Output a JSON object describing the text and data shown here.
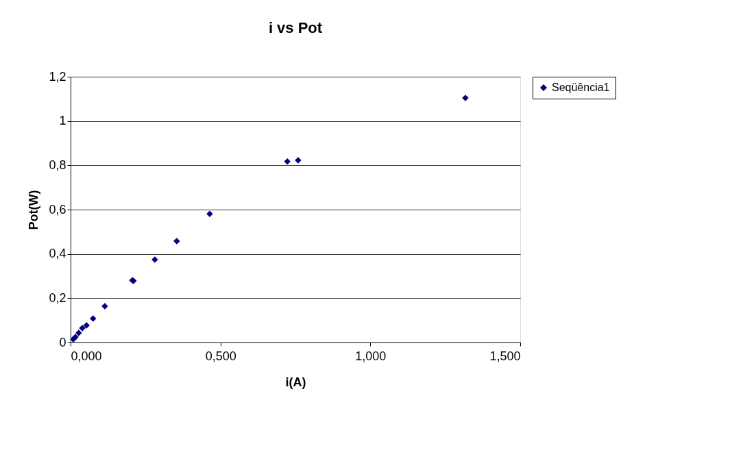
{
  "chart_data": {
    "type": "scatter",
    "title": "i vs Pot",
    "xlabel": "i(A)",
    "ylabel": "Pot(W)",
    "x": [
      1.317,
      0.759,
      0.723,
      0.464,
      0.354,
      0.281,
      0.206,
      0.21,
      0.114,
      0.075,
      0.053,
      0.039,
      0.027,
      0.016,
      0.009
    ],
    "series": [
      {
        "name": "Seqüência1",
        "color": "#000080",
        "values": [
          1.104,
          0.823,
          0.817,
          0.581,
          0.458,
          0.374,
          0.281,
          0.278,
          0.164,
          0.108,
          0.077,
          0.065,
          0.043,
          0.025,
          0.015
        ]
      }
    ],
    "xlim": [
      0,
      1.5
    ],
    "xticks": [
      {
        "value": 0,
        "label": "0,000"
      },
      {
        "value": 0.5,
        "label": "0,500"
      },
      {
        "value": 1,
        "label": "1,000"
      },
      {
        "value": 1.5,
        "label": "1,500"
      }
    ],
    "ylim": [
      0,
      1.2
    ],
    "yticks": [
      0,
      {
        "value": 0.2,
        "label": "0,2"
      },
      {
        "value": 0.4,
        "label": "0,4"
      },
      {
        "value": 0.6,
        "label": "0,6"
      },
      {
        "value": 0.8,
        "label": "0,8"
      },
      1,
      {
        "value": 1.2,
        "label": "1,2"
      }
    ],
    "grid": "y",
    "legend": "right",
    "marker": "diamond"
  }
}
